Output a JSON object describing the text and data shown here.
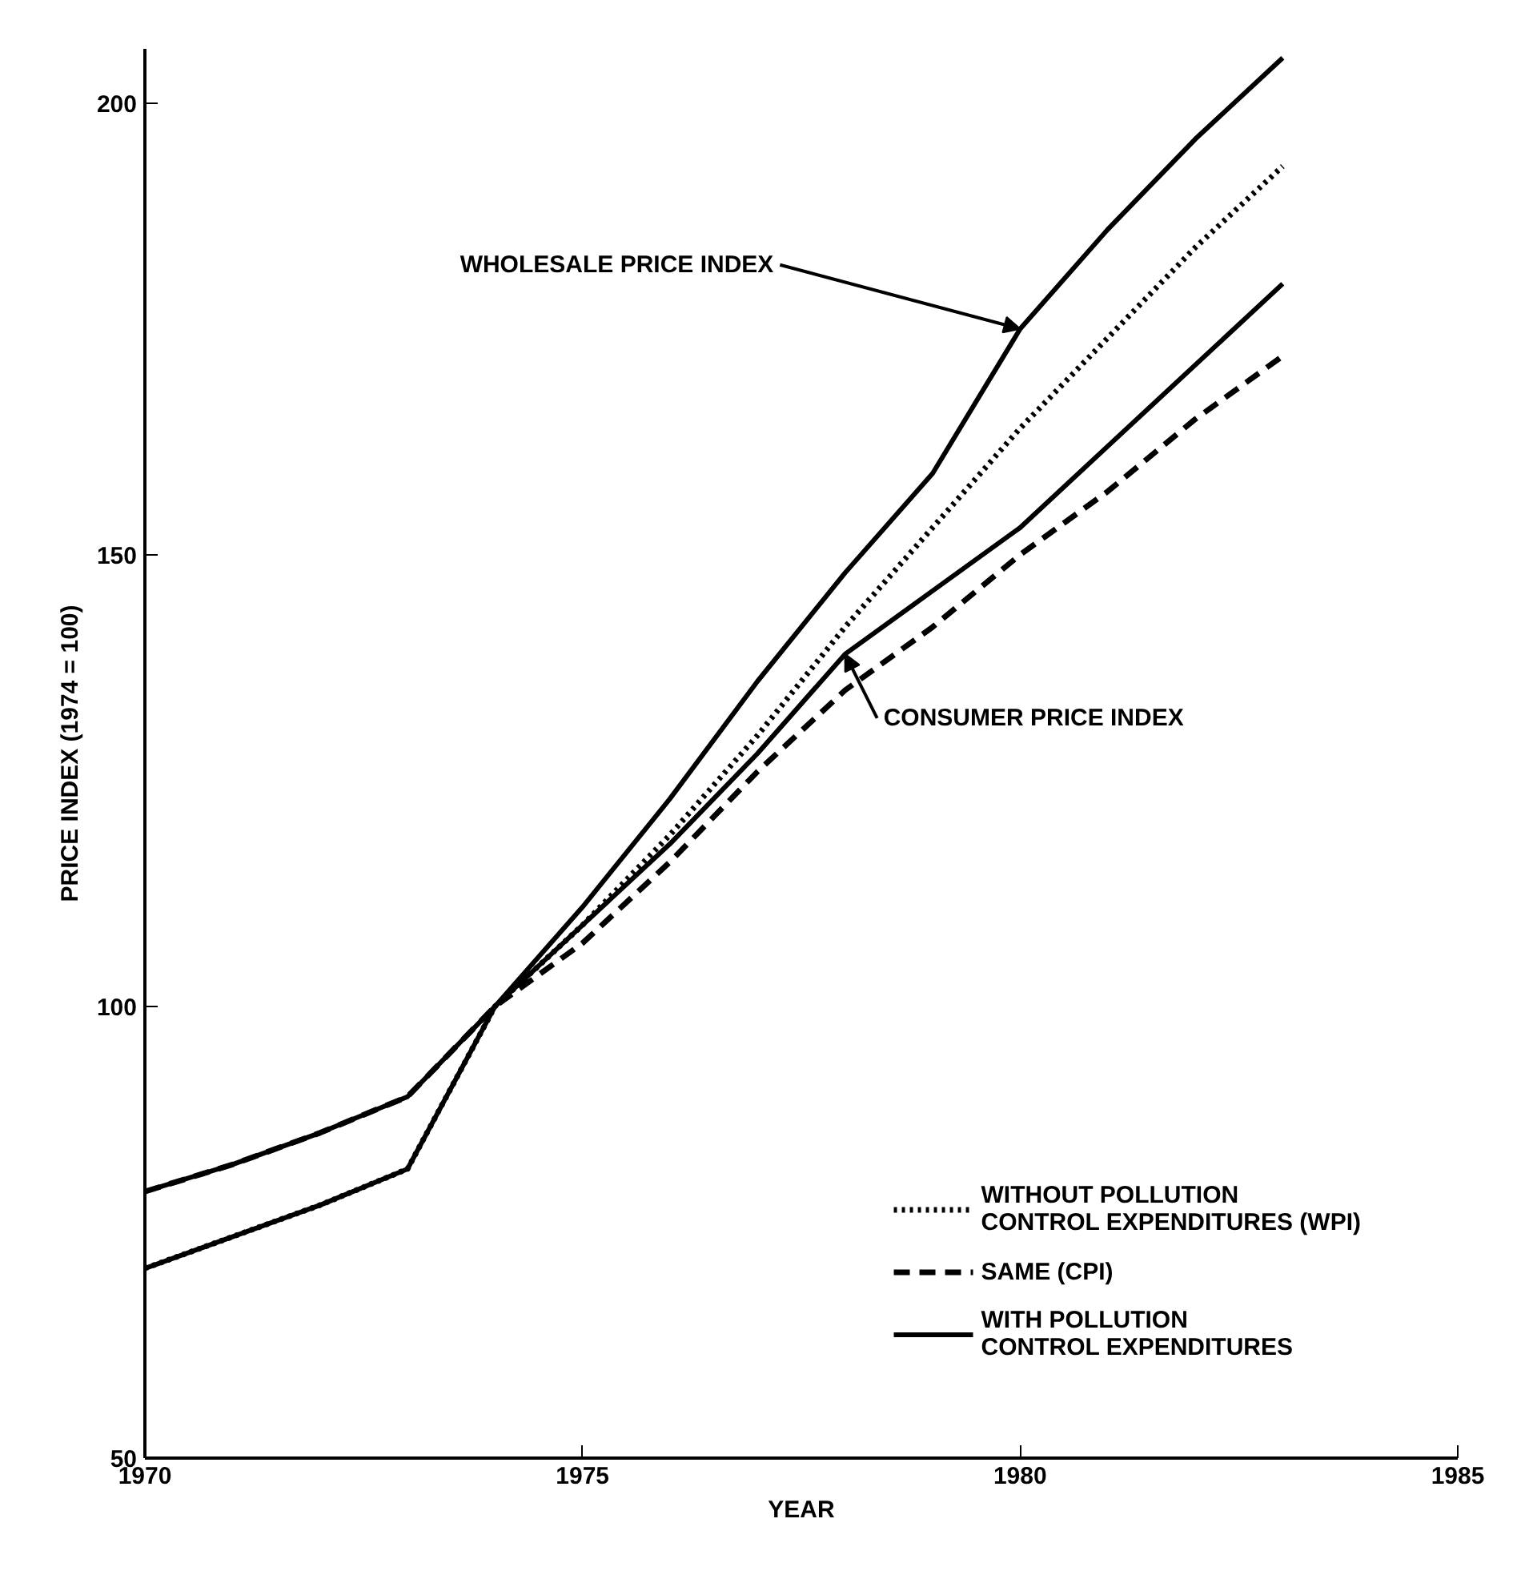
{
  "chart_data": {
    "type": "line",
    "xlabel": "YEAR",
    "ylabel": "PRICE INDEX (1974 = 100)",
    "x": [
      1970,
      1971,
      1972,
      1973,
      1974,
      1975,
      1976,
      1977,
      1978,
      1979,
      1980,
      1981,
      1982,
      1983
    ],
    "xlim": [
      1970,
      1985
    ],
    "xticks": [
      1970,
      1975,
      1980,
      1985
    ],
    "ylim": [
      50,
      206
    ],
    "yticks": [
      50,
      100,
      150,
      200
    ],
    "grid": false,
    "legend": "bottom right",
    "marker": "none",
    "series": [
      {
        "name": "WITHOUT POLLUTION\nCONTROL EXPENDITURES (WPI)",
        "color": "#000000",
        "line_style": "dotted",
        "values": [
          71,
          74.5,
          78,
          82,
          100,
          109,
          119,
          130,
          142,
          153,
          164,
          174,
          184,
          193
        ]
      },
      {
        "name": "SAME (CPI)",
        "color": "#000000",
        "line_style": "dashed",
        "values": [
          79.5,
          82.5,
          86,
          90,
          100,
          107,
          116,
          126,
          135,
          142,
          150,
          157,
          165,
          172
        ]
      },
      {
        "name": "WITH POLLUTION\nCONTROL EXPENDITURES",
        "color": "#000000",
        "line_style": "solid",
        "values": [
          71,
          74.5,
          78,
          82,
          100,
          111,
          123,
          136,
          148,
          159,
          175,
          186,
          196,
          205
        ]
      },
      {
        "color": "#000000",
        "line_style": "solid",
        "values": [
          79.5,
          82.5,
          86,
          90,
          100,
          109,
          118,
          128,
          139,
          146,
          153,
          162,
          171,
          180
        ]
      }
    ],
    "annotations": [
      {
        "text": "WHOLESALE PRICE INDEX",
        "x": 1980,
        "y": 175
      },
      {
        "text": "CONSUMER PRICE INDEX",
        "x": 1978,
        "y": 139
      }
    ]
  }
}
